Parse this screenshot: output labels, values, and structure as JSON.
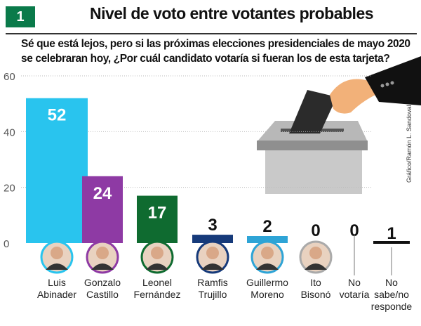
{
  "badge": "1",
  "title": "Nivel de voto entre votantes probables",
  "subtitle": "Sé que está lejos, pero si las próximas elecciones presidenciales de mayo 2020 se celebraran hoy, ¿Por cuál candidato votaría si fueran los de esta tarjeta?",
  "credit": "Gráfico/Ramón L. Sandoval",
  "chart_data": {
    "type": "bar",
    "title": "Nivel de voto entre votantes probables",
    "categories": [
      [
        "Luis",
        "Abinader"
      ],
      [
        "Gonzalo",
        "Castillo"
      ],
      [
        "Leonel",
        "Fernández"
      ],
      [
        "Ramfis",
        "Trujillo"
      ],
      [
        "Guillermo",
        "Moreno"
      ],
      [
        "Ito",
        "Bisonó"
      ],
      [
        "No",
        "votaría"
      ],
      [
        "No",
        "sabe/no",
        "responde"
      ]
    ],
    "values": [
      52,
      24,
      17,
      3,
      2,
      0,
      0,
      1
    ],
    "value_labels": [
      "52",
      "24",
      "17",
      "3",
      "2",
      "0",
      "0",
      "1"
    ],
    "colors": [
      "#29c4ee",
      "#8e3aa4",
      "#0f6b30",
      "#163a7a",
      "#2ea4d6",
      "#aaaaaa",
      "#777777",
      "#111111"
    ],
    "ylim": [
      0,
      60
    ],
    "yticks": [
      "0",
      "20",
      "40",
      "60"
    ],
    "grid": true,
    "xlabel": "",
    "ylabel": ""
  }
}
